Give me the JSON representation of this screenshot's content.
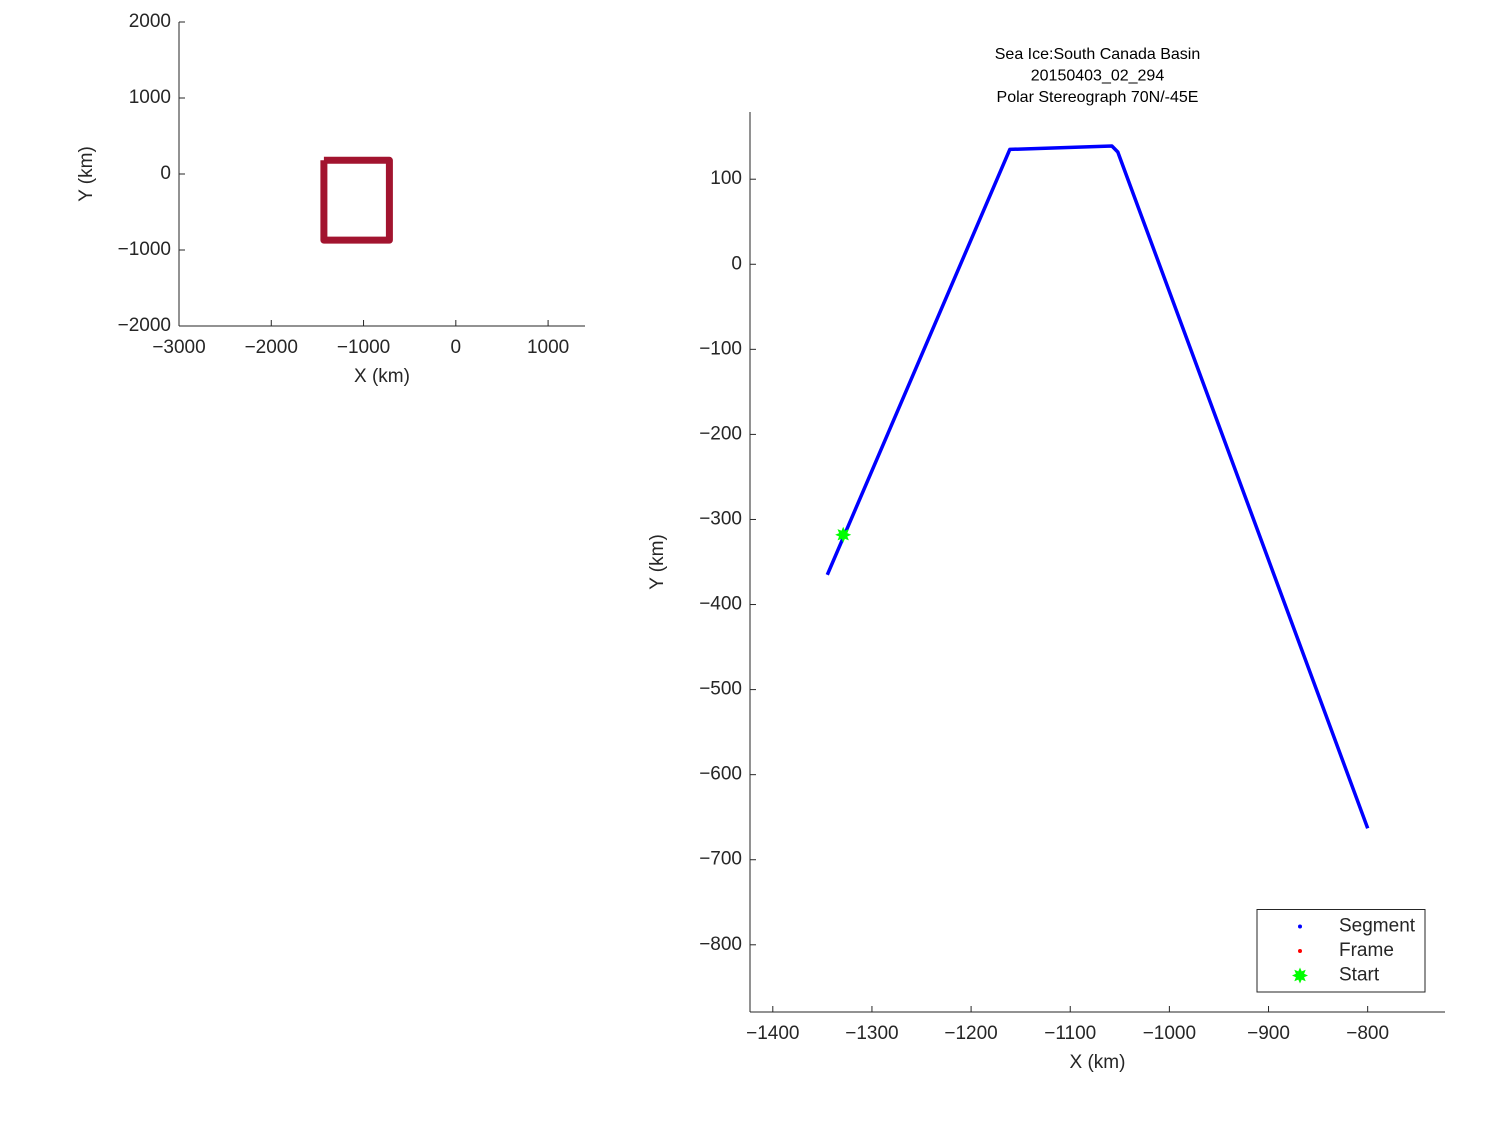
{
  "chart_data": [
    {
      "type": "line",
      "xlabel": "X (km)",
      "ylabel": "Y (km)",
      "xlim": [
        -3000,
        1400
      ],
      "ylim": [
        -2000,
        2000
      ],
      "xticks": [
        {
          "value": -3000,
          "label": "−3000"
        },
        {
          "value": -2000,
          "label": "−2000"
        },
        {
          "value": -1000,
          "label": "−1000"
        },
        0,
        1000
      ],
      "yticks": [
        {
          "value": -2000,
          "label": "−2000"
        },
        {
          "value": -1000,
          "label": "−1000"
        },
        0,
        1000,
        2000
      ],
      "series": [
        {
          "color": "#a2142f",
          "mode": "line",
          "x": [
            -1430,
            -720,
            -720,
            -1430,
            -1430
          ],
          "values": [
            180,
            180,
            -870,
            -870,
            180
          ]
        }
      ]
    },
    {
      "type": "line",
      "title": [
        "Sea Ice:South Canada Basin",
        "20150403_02_294",
        "Polar Stereograph 70N/-45E"
      ],
      "xlabel": "X (km)",
      "ylabel": "Y (km)",
      "xlim": [
        -1423,
        -722
      ],
      "ylim": [
        -879,
        179
      ],
      "xticks": [
        {
          "value": -1400,
          "label": "−1400"
        },
        {
          "value": -1300,
          "label": "−1300"
        },
        {
          "value": -1200,
          "label": "−1200"
        },
        {
          "value": -1100,
          "label": "−1100"
        },
        {
          "value": -1000,
          "label": "−1000"
        },
        {
          "value": -900,
          "label": "−900"
        },
        {
          "value": -800,
          "label": "−800"
        }
      ],
      "yticks": [
        {
          "value": -800,
          "label": "−800"
        },
        {
          "value": -700,
          "label": "−700"
        },
        {
          "value": -600,
          "label": "−600"
        },
        {
          "value": -500,
          "label": "−500"
        },
        {
          "value": -400,
          "label": "−400"
        },
        {
          "value": -300,
          "label": "−300"
        },
        {
          "value": -200,
          "label": "−200"
        },
        {
          "value": -100,
          "label": "−100"
        },
        0,
        100
      ],
      "legend": "southeast",
      "series": [
        {
          "name": "Segment",
          "color": "#0000ff",
          "mode": "line",
          "x": [
            -1345,
            -1161,
            -1058,
            -1052,
            -800
          ],
          "values": [
            -365,
            135,
            139,
            132,
            -663
          ]
        },
        {
          "name": "Frame",
          "color": "#ff0000",
          "mode": "point",
          "x": [],
          "values": []
        },
        {
          "name": "Start",
          "color": "#00ff00",
          "mode": "star",
          "x": [
            -1329
          ],
          "values": [
            -318
          ]
        }
      ]
    }
  ]
}
